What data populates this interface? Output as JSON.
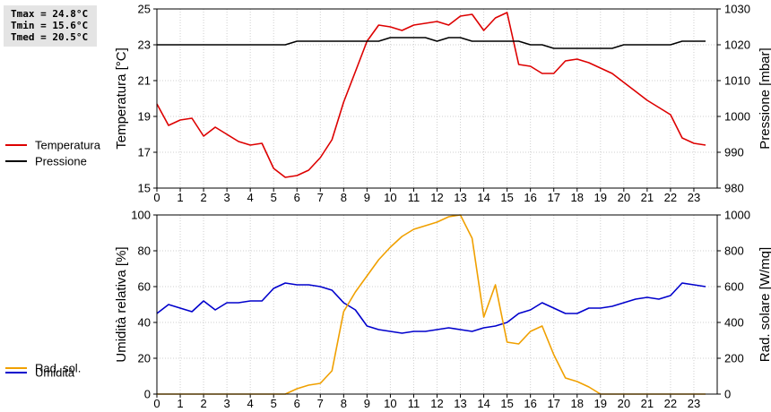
{
  "stats": [
    "Tmax = 24.8°C",
    "Tmin = 15.6°C",
    "Tmed = 20.5°C"
  ],
  "chart_data": [
    {
      "type": "line",
      "ylabel": "Temperatura [°C]",
      "y2label": "Pressione [mbar]",
      "ylim": [
        15,
        25
      ],
      "y2lim": [
        980,
        1030
      ],
      "yticks": [
        15,
        17,
        19,
        21,
        23,
        25
      ],
      "y2ticks": [
        980,
        990,
        1000,
        1010,
        1020,
        1030
      ],
      "xlim": [
        0,
        24
      ],
      "xticks": [
        "0",
        "1",
        "2",
        "3",
        "4",
        "5",
        "6",
        "7",
        "8",
        "9",
        "10",
        "11",
        "12",
        "13",
        "14",
        "15",
        "16",
        "17",
        "18",
        "19",
        "20",
        "21",
        "22",
        "23"
      ],
      "grid": true,
      "legend_position": "left",
      "series": [
        {
          "name": "Temperatura",
          "axis": "left",
          "color": "#dd0000",
          "x": [
            0,
            0.5,
            1,
            1.5,
            2,
            2.5,
            3,
            3.5,
            4,
            4.5,
            5,
            5.5,
            6,
            6.5,
            7,
            7.5,
            8,
            8.5,
            9,
            9.5,
            10,
            10.5,
            11,
            11.5,
            12,
            12.5,
            13,
            13.5,
            14,
            14.5,
            15,
            15.5,
            16,
            16.5,
            17,
            17.5,
            18,
            18.5,
            19,
            19.5,
            20,
            20.5,
            21,
            21.5,
            22,
            22.5,
            23,
            23.5
          ],
          "values": [
            19.7,
            18.5,
            18.8,
            18.9,
            17.9,
            18.4,
            18.0,
            17.6,
            17.4,
            17.5,
            16.1,
            15.6,
            15.7,
            16.0,
            16.7,
            17.7,
            19.8,
            21.5,
            23.2,
            24.1,
            24.0,
            23.8,
            24.1,
            24.2,
            24.3,
            24.1,
            24.6,
            24.7,
            23.8,
            24.5,
            24.8,
            21.9,
            21.8,
            21.4,
            21.4,
            22.1,
            22.2,
            22.0,
            21.7,
            21.4,
            20.9,
            20.4,
            19.9,
            19.5,
            19.1,
            17.8,
            17.5,
            17.4
          ]
        },
        {
          "name": "Pressione",
          "axis": "right",
          "color": "#000000",
          "x": [
            0,
            0.5,
            1,
            1.5,
            2,
            2.5,
            3,
            3.5,
            4,
            4.5,
            5,
            5.5,
            6,
            6.5,
            7,
            7.5,
            8,
            8.5,
            9,
            9.5,
            10,
            10.5,
            11,
            11.5,
            12,
            12.5,
            13,
            13.5,
            14,
            14.5,
            15,
            15.5,
            16,
            16.5,
            17,
            17.5,
            18,
            18.5,
            19,
            19.5,
            20,
            20.5,
            21,
            21.5,
            22,
            22.5,
            23,
            23.5
          ],
          "values": [
            1020,
            1020,
            1020,
            1020,
            1020,
            1020,
            1020,
            1020,
            1020,
            1020,
            1020,
            1020,
            1021,
            1021,
            1021,
            1021,
            1021,
            1021,
            1021,
            1021,
            1022,
            1022,
            1022,
            1022,
            1021,
            1022,
            1022,
            1021,
            1021,
            1021,
            1021,
            1021,
            1020,
            1020,
            1019,
            1019,
            1019,
            1019,
            1019,
            1019,
            1020,
            1020,
            1020,
            1020,
            1020,
            1021,
            1021,
            1021
          ]
        }
      ]
    },
    {
      "type": "line",
      "ylabel": "Umidità relativa [%]",
      "y2label": "Rad. solare [W/mq]",
      "ylim": [
        0,
        100
      ],
      "y2lim": [
        0,
        1000
      ],
      "yticks": [
        0,
        20,
        40,
        60,
        80,
        100
      ],
      "y2ticks": [
        0,
        200,
        400,
        600,
        800,
        1000
      ],
      "xlim": [
        0,
        24
      ],
      "xticks": [
        "0",
        "1",
        "2",
        "3",
        "4",
        "5",
        "6",
        "7",
        "8",
        "9",
        "10",
        "11",
        "12",
        "13",
        "14",
        "15",
        "16",
        "17",
        "18",
        "19",
        "20",
        "21",
        "22",
        "23"
      ],
      "grid": true,
      "legend_position": "left",
      "series": [
        {
          "name": "Umidità",
          "axis": "left",
          "color": "#0000cc",
          "x": [
            0,
            0.5,
            1,
            1.5,
            2,
            2.5,
            3,
            3.5,
            4,
            4.5,
            5,
            5.5,
            6,
            6.5,
            7,
            7.5,
            8,
            8.5,
            9,
            9.5,
            10,
            10.5,
            11,
            11.5,
            12,
            12.5,
            13,
            13.5,
            14,
            14.5,
            15,
            15.5,
            16,
            16.5,
            17,
            17.5,
            18,
            18.5,
            19,
            19.5,
            20,
            20.5,
            21,
            21.5,
            22,
            22.5,
            23,
            23.5
          ],
          "values": [
            45,
            50,
            48,
            46,
            52,
            47,
            51,
            51,
            52,
            52,
            59,
            62,
            61,
            61,
            60,
            58,
            51,
            47,
            38,
            36,
            35,
            34,
            35,
            35,
            36,
            37,
            36,
            35,
            37,
            38,
            40,
            45,
            47,
            51,
            48,
            45,
            45,
            48,
            48,
            49,
            51,
            53,
            54,
            53,
            55,
            62,
            61,
            60
          ]
        },
        {
          "name": "Rad. sol.",
          "axis": "right",
          "color": "#f0a000",
          "x": [
            0,
            0.5,
            1,
            1.5,
            2,
            2.5,
            3,
            3.5,
            4,
            4.5,
            5,
            5.5,
            6,
            6.5,
            7,
            7.5,
            8,
            8.5,
            9,
            9.5,
            10,
            10.5,
            11,
            11.5,
            12,
            12.5,
            13,
            13.5,
            14,
            14.5,
            15,
            15.5,
            16,
            16.5,
            17,
            17.5,
            18,
            18.5,
            19,
            19.5,
            20,
            20.5,
            21,
            21.5,
            22,
            22.5,
            23,
            23.5
          ],
          "values": [
            0,
            0,
            0,
            0,
            0,
            0,
            0,
            0,
            0,
            0,
            0,
            0,
            30,
            50,
            60,
            130,
            460,
            570,
            660,
            750,
            820,
            880,
            920,
            940,
            960,
            990,
            1000,
            870,
            430,
            610,
            290,
            280,
            350,
            380,
            220,
            90,
            70,
            40,
            0,
            0,
            0,
            0,
            0,
            0,
            0,
            0,
            0,
            0
          ]
        }
      ]
    }
  ]
}
